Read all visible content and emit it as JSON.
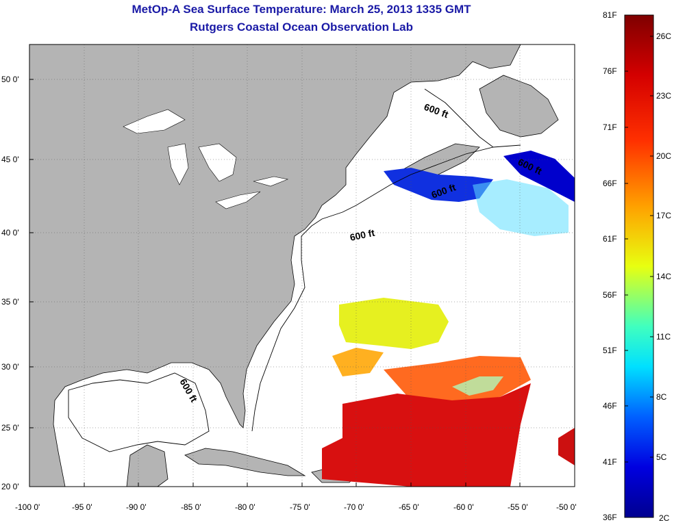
{
  "title": {
    "line1": "MetOp-A Sea Surface Temperature:  March 25, 2013 1335 GMT",
    "line2": "Rutgers Coastal Ocean Observation Lab"
  },
  "map": {
    "lon_range": [
      -100,
      -50
    ],
    "lat_range": [
      20,
      52
    ],
    "lat_ticks": [
      "50 0'",
      "45 0'",
      "40 0'",
      "35 0'",
      "30 0'",
      "25 0'",
      "20 0'"
    ],
    "lon_ticks": [
      "-100 0'",
      "-95 0'",
      "-90 0'",
      "-85 0'",
      "-80 0'",
      "-75 0'",
      "-70 0'",
      "-65 0'",
      "-60 0'",
      "-55 0'",
      "-50 0'"
    ],
    "contour_labels": [
      "600 ft",
      "600 ft",
      "600 ft",
      "600 ft",
      "600 ft"
    ],
    "land_color": "#b4b4b4",
    "ocean_color": "#ffffff"
  },
  "colorbar": {
    "f_labels": [
      "81F",
      "76F",
      "71F",
      "66F",
      "61F",
      "56F",
      "51F",
      "46F",
      "41F",
      "36F"
    ],
    "c_labels": [
      "26C",
      "23C",
      "20C",
      "17C",
      "14C",
      "11C",
      "8C",
      "5C",
      "2C"
    ],
    "colors": [
      "#7f0000",
      "#ff0000",
      "#ff7f00",
      "#ffff00",
      "#7fff7f",
      "#00ffff",
      "#007fff",
      "#0000ff",
      "#00008f"
    ]
  }
}
